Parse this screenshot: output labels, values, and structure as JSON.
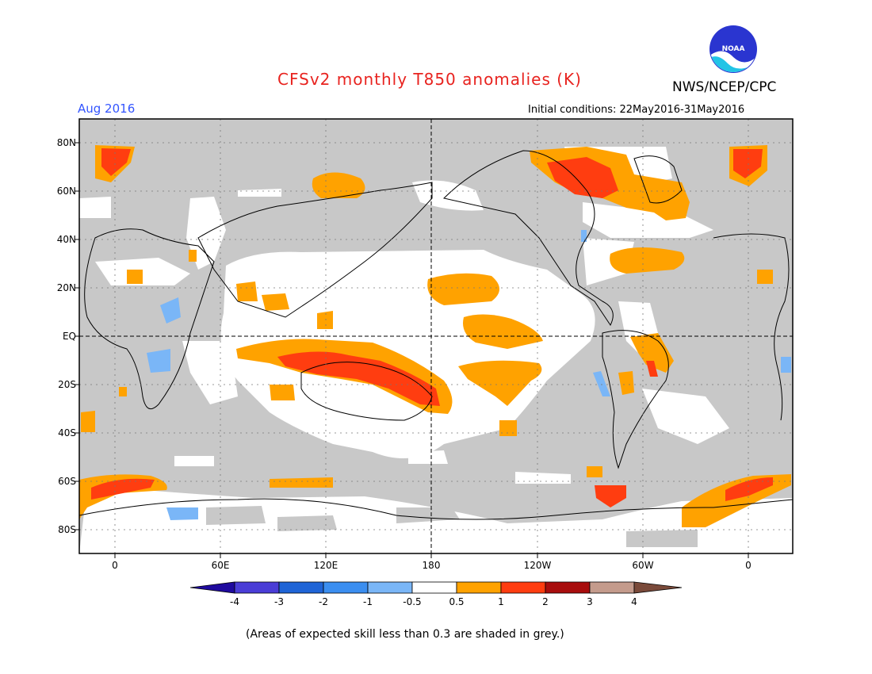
{
  "title": "CFSv2 monthly T850 anomalies (K)",
  "organization": "NWS/NCEP/CPC",
  "logo_text": "NOAA",
  "forecast_month": "Aug 2016",
  "initial_conditions": "Initial conditions: 22May2016-31May2016",
  "footnote": "(Areas of expected skill less than 0.3 are shaded in grey.)",
  "axes": {
    "lat_labels": [
      "80N",
      "60N",
      "40N",
      "20N",
      "EQ",
      "20S",
      "40S",
      "60S",
      "80S"
    ],
    "lon_labels": [
      "0",
      "60E",
      "120E",
      "180",
      "120W",
      "60W",
      "0"
    ]
  },
  "colorbar": {
    "labels": [
      "-4",
      "-3",
      "-2",
      "-1",
      "-0.5",
      "0.5",
      "1",
      "2",
      "3",
      "4"
    ],
    "colors": [
      "#1f0a9e",
      "#4a3dd6",
      "#1f64d6",
      "#3b8ef0",
      "#7ab6f7",
      "#ffffff",
      "#ffa200",
      "#ff3d10",
      "#a80d0d",
      "#c49b8c",
      "#7a4a3a"
    ]
  },
  "colors": {
    "title": "#e8231f",
    "month": "#3355ff",
    "grey_mask": "#c8c8c8",
    "warm_1": "#ffa200",
    "warm_2": "#ff3d10",
    "cool_1": "#7ab6f7"
  }
}
